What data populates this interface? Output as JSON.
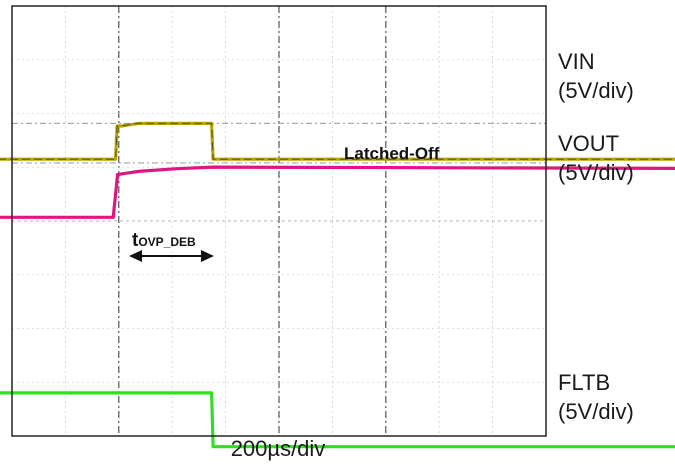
{
  "chart_data": {
    "type": "line",
    "timebase": "200µs/div",
    "x_unit": "µs",
    "xlim": [
      -400,
      1400
    ],
    "grid": true,
    "series": [
      {
        "name": "VIN",
        "scale": "(5V/div)",
        "color": "#b8a400",
        "points": [
          [
            -400,
            5.95
          ],
          [
            -7,
            5.95
          ],
          [
            -4,
            9.1
          ],
          [
            5,
            9.1
          ],
          [
            40,
            9.35
          ],
          [
            192,
            9.35
          ],
          [
            195,
            5.95
          ],
          [
            1400,
            5.95
          ]
        ]
      },
      {
        "name": "VOUT",
        "scale": "(5V/div)",
        "color": "#e0157f",
        "points": [
          [
            -400,
            0.45
          ],
          [
            -12,
            0.45
          ],
          [
            -3,
            4.5
          ],
          [
            40,
            4.8
          ],
          [
            120,
            5.05
          ],
          [
            195,
            5.2
          ],
          [
            1400,
            5.05
          ]
        ]
      },
      {
        "name": "FLTB",
        "scale": "(5V/div)",
        "color": "#33dd22",
        "points": [
          [
            -400,
            -16.2
          ],
          [
            192,
            -16.2
          ],
          [
            195,
            -21.3
          ],
          [
            1400,
            -21.3
          ]
        ]
      }
    ],
    "annotations": {
      "latched_off": "Latched-Off",
      "debounce_main": "t",
      "debounce_sub": "OVP_DEB",
      "debounce_span": [
        0,
        200
      ]
    }
  }
}
